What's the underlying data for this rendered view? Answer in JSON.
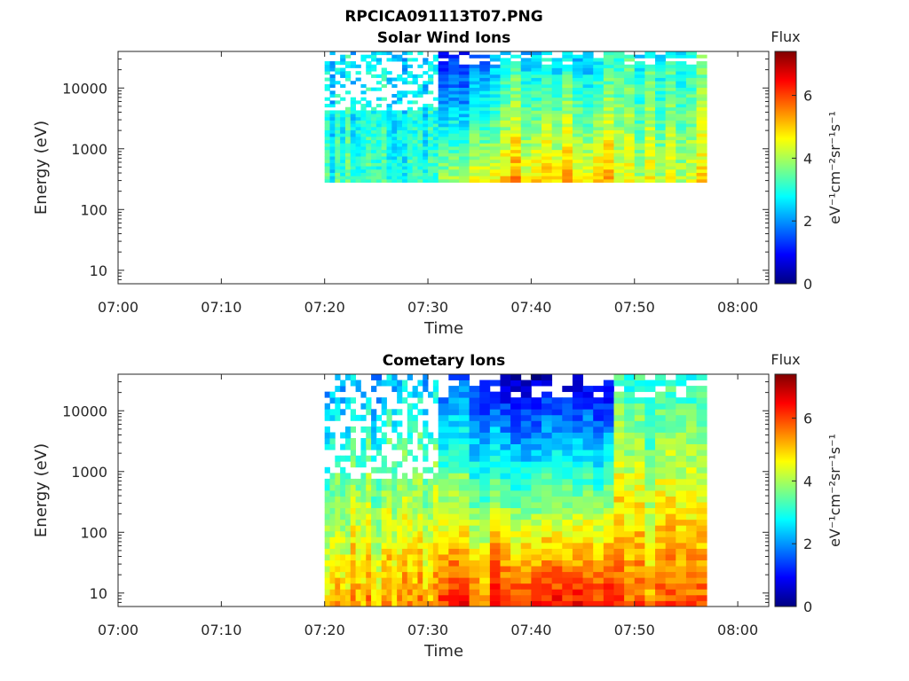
{
  "figure": {
    "title": "RPCICA091113T07.PNG"
  },
  "colors": {
    "colormap": [
      "#000080",
      "#0000ff",
      "#0080ff",
      "#00ffff",
      "#80ff80",
      "#ffff00",
      "#ff8000",
      "#ff0000",
      "#800000"
    ],
    "axis": "#262626",
    "background": "#ffffff"
  },
  "chart_data": [
    {
      "type": "heatmap",
      "title": "Solar Wind Ions",
      "xlabel": "Time",
      "ylabel": "Energy (eV)",
      "x_scale": "time",
      "y_scale": "log",
      "xlim": [
        "07:00",
        "08:03"
      ],
      "ylim": [
        6,
        40000
      ],
      "x_ticks": [
        "07:00",
        "07:10",
        "07:20",
        "07:30",
        "07:40",
        "07:50",
        "08:00"
      ],
      "y_ticks": [
        {
          "value": 10,
          "label": "10"
        },
        {
          "value": 100,
          "label": "100"
        },
        {
          "value": 1000,
          "label": "1000"
        },
        {
          "value": 10000,
          "label": "10000"
        }
      ],
      "data_time_range": [
        "07:20",
        "07:57"
      ],
      "data_energy_range": [
        280,
        40000
      ],
      "colorbar": {
        "title": "Flux",
        "label": "eV⁻¹cm⁻²sr⁻¹s⁻¹",
        "range": [
          0,
          7.4
        ],
        "ticks": [
          0,
          2,
          4,
          6
        ]
      },
      "flux_profile": {
        "time_segments": [
          {
            "start": "07:20",
            "end": "07:31",
            "flux_at_low_energy": 3.2,
            "flux_at_high_energy": 2.6,
            "sparse": true
          },
          {
            "start": "07:31",
            "end": "07:36",
            "flux_at_low_energy": 4.2,
            "flux_at_high_energy": 1.3,
            "sparse": false
          },
          {
            "start": "07:36",
            "end": "07:48",
            "flux_at_low_energy": 5.0,
            "flux_at_high_energy": 2.6,
            "sparse": false
          },
          {
            "start": "07:48",
            "end": "07:57",
            "flux_at_low_energy": 4.4,
            "flux_at_high_energy": 3.0,
            "sparse": false
          }
        ]
      }
    },
    {
      "type": "heatmap",
      "title": "Cometary Ions",
      "xlabel": "Time",
      "ylabel": "Energy (eV)",
      "x_scale": "time",
      "y_scale": "log",
      "xlim": [
        "07:00",
        "08:03"
      ],
      "ylim": [
        6,
        40000
      ],
      "x_ticks": [
        "07:00",
        "07:10",
        "07:20",
        "07:30",
        "07:40",
        "07:50",
        "08:00"
      ],
      "y_ticks": [
        {
          "value": 10,
          "label": "10"
        },
        {
          "value": 100,
          "label": "100"
        },
        {
          "value": 1000,
          "label": "1000"
        },
        {
          "value": 10000,
          "label": "10000"
        }
      ],
      "data_time_range": [
        "07:20",
        "07:57"
      ],
      "data_energy_range": [
        6,
        40000
      ],
      "colorbar": {
        "title": "Flux",
        "label": "eV⁻¹cm⁻²sr⁻¹s⁻¹",
        "range": [
          0,
          7.4
        ],
        "ticks": [
          0,
          2,
          4,
          6
        ]
      },
      "flux_profile": {
        "time_segments": [
          {
            "start": "07:20",
            "end": "07:31",
            "flux_at_low_energy": 5.2,
            "flux_at_high_energy": 2.2,
            "sparse": true
          },
          {
            "start": "07:31",
            "end": "07:36",
            "flux_at_low_energy": 6.0,
            "flux_at_high_energy": 1.2,
            "sparse": false
          },
          {
            "start": "07:36",
            "end": "07:48",
            "flux_at_low_energy": 6.6,
            "flux_at_high_energy": 0.8,
            "sparse": false
          },
          {
            "start": "07:48",
            "end": "07:57",
            "flux_at_low_energy": 5.8,
            "flux_at_high_energy": 3.0,
            "sparse": false
          }
        ]
      }
    }
  ]
}
